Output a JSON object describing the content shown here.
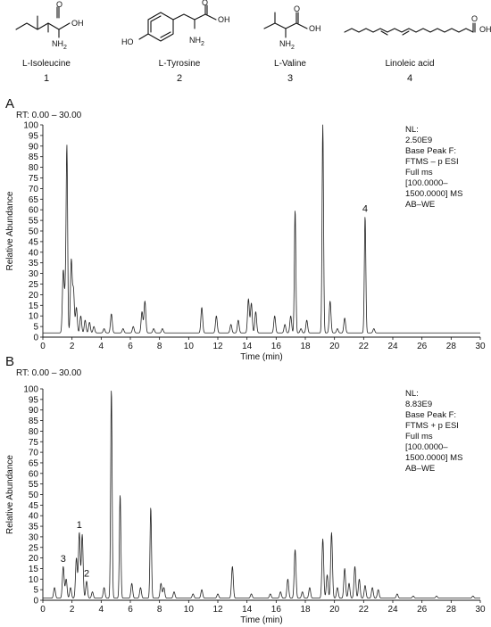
{
  "compounds": [
    {
      "name": "L-Isoleucine",
      "number": "1",
      "oh": "OH",
      "nh2": "NH",
      "nh2_sub": "2",
      "o": "O"
    },
    {
      "name": "L-Tyrosine",
      "number": "2",
      "oh": "OH",
      "ho": "HO",
      "nh2": "NH",
      "nh2_sub": "2",
      "o": "O"
    },
    {
      "name": "L-Valine",
      "number": "3",
      "oh": "OH",
      "nh2": "NH",
      "nh2_sub": "2",
      "o": "O"
    },
    {
      "name": "Linoleic acid",
      "number": "4",
      "oh": "OH",
      "o": "O"
    }
  ],
  "chart_data": [
    {
      "panel": "A",
      "type": "line",
      "rt_range": "RT: 0.00 – 30.00",
      "xlabel": "Time (min)",
      "ylabel": "Relative Abundance",
      "xlim": [
        0,
        30
      ],
      "ylim": [
        0,
        100
      ],
      "xticks": [
        0,
        2,
        4,
        6,
        8,
        10,
        12,
        14,
        16,
        18,
        20,
        22,
        24,
        26,
        28,
        30
      ],
      "yticks": [
        0,
        5,
        10,
        15,
        20,
        25,
        30,
        35,
        40,
        45,
        50,
        55,
        60,
        65,
        70,
        75,
        80,
        85,
        90,
        95,
        100
      ],
      "grid": false,
      "notes": [
        "NL:",
        "2.50E9",
        "Base Peak F:",
        "FTMS – p ESI",
        "Full ms",
        "[100.0000–",
        "1500.0000] MS",
        "AB–WE"
      ],
      "baseline": 2,
      "peaks": [
        {
          "x": 1.4,
          "y": 31
        },
        {
          "x": 1.55,
          "y": 20
        },
        {
          "x": 1.65,
          "y": 86
        },
        {
          "x": 1.95,
          "y": 36
        },
        {
          "x": 2.1,
          "y": 22
        },
        {
          "x": 2.3,
          "y": 14
        },
        {
          "x": 2.6,
          "y": 10
        },
        {
          "x": 2.9,
          "y": 8
        },
        {
          "x": 3.2,
          "y": 7
        },
        {
          "x": 3.5,
          "y": 5
        },
        {
          "x": 4.2,
          "y": 4
        },
        {
          "x": 4.7,
          "y": 11
        },
        {
          "x": 5.5,
          "y": 4
        },
        {
          "x": 6.2,
          "y": 5
        },
        {
          "x": 6.8,
          "y": 12
        },
        {
          "x": 7.0,
          "y": 17
        },
        {
          "x": 7.6,
          "y": 4
        },
        {
          "x": 8.2,
          "y": 4
        },
        {
          "x": 10.9,
          "y": 14
        },
        {
          "x": 11.9,
          "y": 10
        },
        {
          "x": 12.9,
          "y": 6
        },
        {
          "x": 13.4,
          "y": 8
        },
        {
          "x": 14.1,
          "y": 18
        },
        {
          "x": 14.3,
          "y": 16
        },
        {
          "x": 14.6,
          "y": 12
        },
        {
          "x": 15.9,
          "y": 10
        },
        {
          "x": 16.6,
          "y": 6
        },
        {
          "x": 17.0,
          "y": 10
        },
        {
          "x": 17.3,
          "y": 60
        },
        {
          "x": 17.7,
          "y": 4
        },
        {
          "x": 18.1,
          "y": 8
        },
        {
          "x": 19.2,
          "y": 100
        },
        {
          "x": 19.7,
          "y": 17
        },
        {
          "x": 20.2,
          "y": 4
        },
        {
          "x": 20.7,
          "y": 9
        },
        {
          "x": 22.1,
          "y": 57
        },
        {
          "x": 22.7,
          "y": 4
        }
      ],
      "peak_labels": [
        {
          "label": "4",
          "x": 22.1,
          "y": 57
        }
      ]
    },
    {
      "panel": "B",
      "type": "line",
      "rt_range": "RT: 0.00 – 30.00",
      "xlabel": "Time (min)",
      "ylabel": "Relative Abundance",
      "xlim": [
        0,
        30
      ],
      "ylim": [
        0,
        100
      ],
      "xticks": [
        0,
        2,
        4,
        6,
        8,
        10,
        12,
        14,
        16,
        18,
        20,
        22,
        24,
        26,
        28,
        30
      ],
      "yticks": [
        0,
        5,
        10,
        15,
        20,
        25,
        30,
        35,
        40,
        45,
        50,
        55,
        60,
        65,
        70,
        75,
        80,
        85,
        90,
        95,
        100
      ],
      "grid": false,
      "notes": [
        "NL:",
        "8.83E9",
        "Base Peak F:",
        "FTMS + p ESI",
        "Full ms",
        "[100.0000–",
        "1500.0000] MS",
        "AB–WE"
      ],
      "baseline": 1,
      "peaks": [
        {
          "x": 0.8,
          "y": 6
        },
        {
          "x": 1.4,
          "y": 16
        },
        {
          "x": 1.6,
          "y": 10
        },
        {
          "x": 1.9,
          "y": 6
        },
        {
          "x": 2.3,
          "y": 20
        },
        {
          "x": 2.5,
          "y": 32
        },
        {
          "x": 2.7,
          "y": 31
        },
        {
          "x": 3.0,
          "y": 9
        },
        {
          "x": 3.4,
          "y": 4
        },
        {
          "x": 4.2,
          "y": 6
        },
        {
          "x": 4.7,
          "y": 100
        },
        {
          "x": 5.3,
          "y": 50
        },
        {
          "x": 6.1,
          "y": 8
        },
        {
          "x": 6.7,
          "y": 6
        },
        {
          "x": 7.4,
          "y": 44
        },
        {
          "x": 8.1,
          "y": 8
        },
        {
          "x": 8.3,
          "y": 6
        },
        {
          "x": 9.0,
          "y": 4
        },
        {
          "x": 10.3,
          "y": 3
        },
        {
          "x": 10.9,
          "y": 5
        },
        {
          "x": 12.0,
          "y": 3
        },
        {
          "x": 13.0,
          "y": 16
        },
        {
          "x": 14.3,
          "y": 3
        },
        {
          "x": 15.6,
          "y": 3
        },
        {
          "x": 16.3,
          "y": 4
        },
        {
          "x": 16.8,
          "y": 10
        },
        {
          "x": 17.3,
          "y": 24
        },
        {
          "x": 17.8,
          "y": 4
        },
        {
          "x": 18.3,
          "y": 6
        },
        {
          "x": 19.2,
          "y": 29
        },
        {
          "x": 19.5,
          "y": 12
        },
        {
          "x": 19.8,
          "y": 32
        },
        {
          "x": 20.2,
          "y": 6
        },
        {
          "x": 20.7,
          "y": 15
        },
        {
          "x": 21.0,
          "y": 8
        },
        {
          "x": 21.4,
          "y": 16
        },
        {
          "x": 21.7,
          "y": 10
        },
        {
          "x": 22.1,
          "y": 7
        },
        {
          "x": 22.6,
          "y": 6
        },
        {
          "x": 23.0,
          "y": 5
        },
        {
          "x": 24.3,
          "y": 3
        },
        {
          "x": 25.4,
          "y": 2
        },
        {
          "x": 27.0,
          "y": 2
        },
        {
          "x": 29.5,
          "y": 2
        }
      ],
      "peak_labels": [
        {
          "label": "3",
          "x": 1.4,
          "y": 16
        },
        {
          "label": "1",
          "x": 2.5,
          "y": 32
        },
        {
          "label": "2",
          "x": 3.0,
          "y": 9
        }
      ]
    }
  ]
}
